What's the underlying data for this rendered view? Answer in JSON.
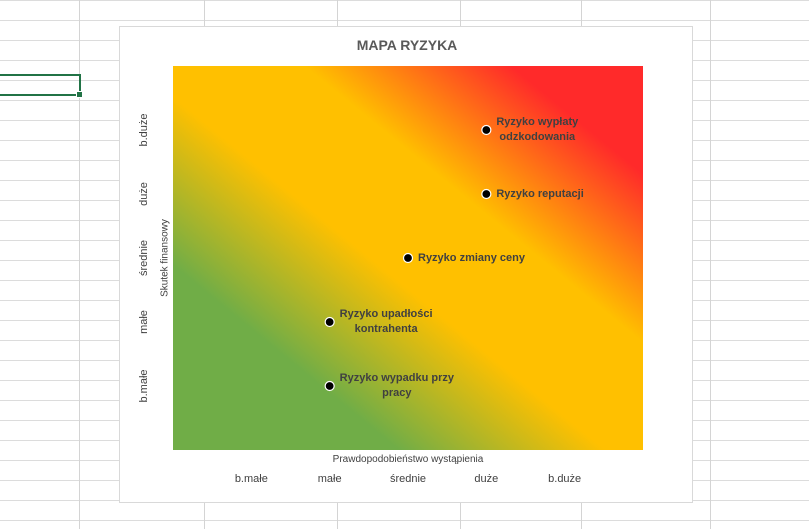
{
  "chart_data": {
    "type": "scatter",
    "title": "MAPA RYZYKA",
    "xlabel": "Prawdopodobieństwo wystąpienia",
    "ylabel": "Skutek finansowy",
    "x_categories": [
      "b.małe",
      "małe",
      "średnie",
      "duże",
      "b.duże"
    ],
    "y_categories": [
      "b.małe",
      "małe",
      "średnie",
      "duże",
      "b.duże"
    ],
    "xlim": [
      0,
      6
    ],
    "ylim": [
      0,
      6
    ],
    "background": "diagonal gradient green (low risk) to yellow to red (high risk)",
    "colors": {
      "low": "#70ad47",
      "medium": "#ffc000",
      "high": "#ff2a2a"
    },
    "points": [
      {
        "label": "Ryzyko wypłaty odzkodowania",
        "lines": [
          "Ryzyko wypłaty",
          "odzkodowania"
        ],
        "x": 4,
        "y": 5
      },
      {
        "label": "Ryzyko reputacji",
        "lines": [
          "Ryzyko reputacji"
        ],
        "x": 4,
        "y": 4
      },
      {
        "label": "Ryzyko zmiany ceny",
        "lines": [
          "Ryzyko zmiany ceny"
        ],
        "x": 3,
        "y": 3
      },
      {
        "label": "Ryzyko upadłości kontrahenta",
        "lines": [
          "Ryzyko upadłości",
          "kontrahenta"
        ],
        "x": 2,
        "y": 2
      },
      {
        "label": "Ryzyko wypadku przy pracy",
        "lines": [
          "Ryzyko wypadku przy",
          "pracy"
        ],
        "x": 2,
        "y": 1
      }
    ]
  }
}
